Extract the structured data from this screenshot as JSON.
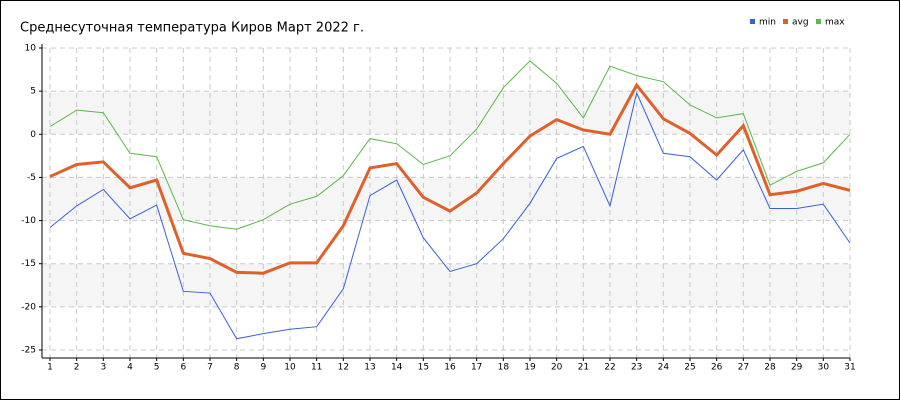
{
  "chart_data": {
    "type": "line",
    "title": "Среднесуточная температура Киров  Март 2022 г.",
    "x": [
      1,
      2,
      3,
      4,
      5,
      6,
      7,
      8,
      9,
      10,
      11,
      12,
      13,
      14,
      15,
      16,
      17,
      18,
      19,
      20,
      21,
      22,
      23,
      24,
      25,
      26,
      27,
      28,
      29,
      30,
      31
    ],
    "xlim": [
      1,
      31
    ],
    "ylim": [
      -25,
      10
    ],
    "yticks": [
      -25,
      -20,
      -15,
      -10,
      -5,
      0,
      5,
      10
    ],
    "grid": true,
    "legend": "top-right",
    "series": [
      {
        "name": "min",
        "color": "#3a5fd9",
        "values": [
          -10.8,
          -8.3,
          -6.4,
          -9.8,
          -8.2,
          -18.2,
          -18.4,
          -23.7,
          -23.1,
          -22.6,
          -22.3,
          -17.9,
          -7.1,
          -5.3,
          -12.0,
          -15.9,
          -15.0,
          -12.1,
          -8.0,
          -2.8,
          -1.4,
          -8.3,
          4.8,
          -2.2,
          -2.6,
          -5.3,
          -1.8,
          -8.6,
          -8.6,
          -8.1,
          -12.6
        ]
      },
      {
        "name": "avg",
        "color": "#e0602a",
        "values": [
          -4.9,
          -3.5,
          -3.2,
          -6.2,
          -5.3,
          -13.8,
          -14.4,
          -16.0,
          -16.1,
          -14.9,
          -14.9,
          -10.6,
          -3.9,
          -3.4,
          -7.3,
          -8.9,
          -6.8,
          -3.4,
          -0.2,
          1.7,
          0.5,
          0.0,
          5.7,
          1.8,
          0.1,
          -2.4,
          1.0,
          -7.0,
          -6.6,
          -5.7,
          -6.5
        ]
      },
      {
        "name": "max",
        "color": "#5cb84a",
        "values": [
          0.9,
          2.8,
          2.5,
          -2.2,
          -2.6,
          -9.9,
          -10.6,
          -11.0,
          -9.9,
          -8.1,
          -7.2,
          -4.8,
          -0.5,
          -1.1,
          -3.5,
          -2.5,
          0.6,
          5.4,
          8.5,
          5.9,
          1.9,
          7.9,
          6.8,
          6.1,
          3.4,
          1.9,
          2.4,
          -5.9,
          -4.3,
          -3.3,
          0.0
        ]
      }
    ]
  }
}
